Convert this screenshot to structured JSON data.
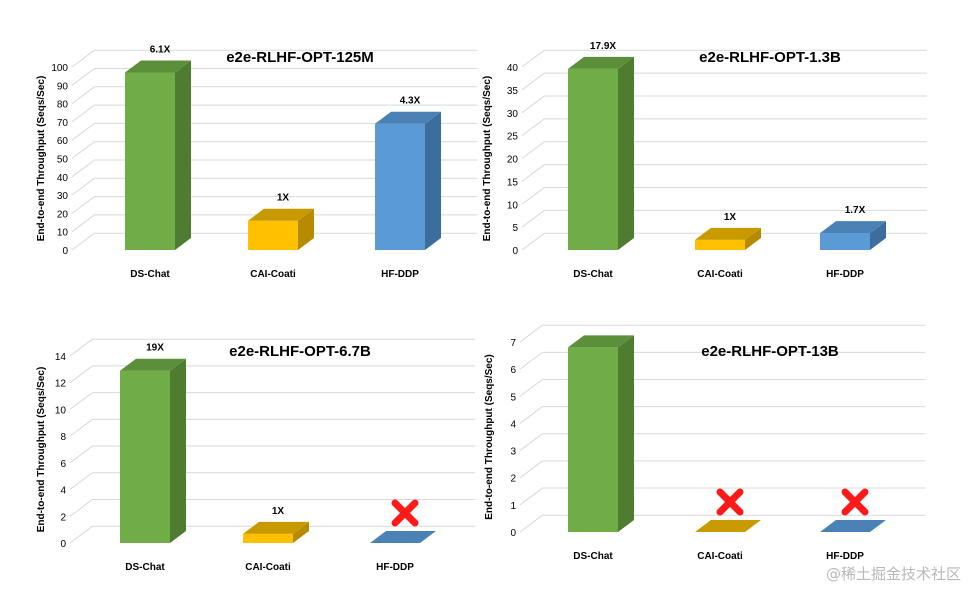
{
  "colors": {
    "green": "#70ad47",
    "green_side": "#4e7c30",
    "green_top": "#5b8f3a",
    "yellow": "#ffc000",
    "yellow_side": "#b78a00",
    "yellow_top": "#c99a00",
    "blue": "#5b9bd5",
    "blue_side": "#3b6e9e",
    "blue_top": "#4a82b5",
    "cross": "#ff1a1a",
    "grid": "#d9d9d9"
  },
  "chart_data": [
    {
      "type": "bar",
      "title": "e2e-RLHF-OPT-125M",
      "ylabel": "End-to-end Throughput (Seqs/Sec)",
      "ylim": [
        0,
        100
      ],
      "yticks": [
        0,
        10,
        20,
        30,
        40,
        50,
        60,
        70,
        80,
        90,
        100
      ],
      "categories": [
        "DS-Chat",
        "CAI-Coati",
        "HF-DDP"
      ],
      "values": [
        97,
        16,
        69
      ],
      "labels": [
        "6.1X",
        "1X",
        "4.3X"
      ],
      "failed": [
        false,
        false,
        false
      ]
    },
    {
      "type": "bar",
      "title": "e2e-RLHF-OPT-1.3B",
      "ylabel": "End-to-end Throughput (Seqs/Sec)",
      "ylim": [
        0,
        40
      ],
      "yticks": [
        0,
        5,
        10,
        15,
        20,
        25,
        30,
        35,
        40
      ],
      "categories": [
        "DS-Chat",
        "CAI-Coati",
        "HF-DDP"
      ],
      "values": [
        39.6,
        2.2,
        3.7
      ],
      "labels": [
        "17.9X",
        "1X",
        "1.7X"
      ],
      "failed": [
        false,
        false,
        false
      ]
    },
    {
      "type": "bar",
      "title": "e2e-RLHF-OPT-6.7B",
      "ylabel": "End-to-end Throughput (Seqs/Sec)",
      "ylim": [
        0,
        14
      ],
      "yticks": [
        0,
        2,
        4,
        6,
        8,
        10,
        12,
        14
      ],
      "categories": [
        "DS-Chat",
        "CAI-Coati",
        "HF-DDP"
      ],
      "values": [
        12.9,
        0.68,
        0
      ],
      "labels": [
        "19X",
        "1X",
        ""
      ],
      "failed": [
        false,
        false,
        true
      ]
    },
    {
      "type": "bar",
      "title": "e2e-RLHF-OPT-13B",
      "ylabel": "End-to-end Throughput (Seqs/Sec)",
      "ylim": [
        0,
        7
      ],
      "yticks": [
        0,
        1,
        2,
        3,
        4,
        5,
        6,
        7
      ],
      "categories": [
        "DS-Chat",
        "CAI-Coati",
        "HF-DDP"
      ],
      "values": [
        6.8,
        0,
        0
      ],
      "labels": [
        "",
        "",
        ""
      ],
      "failed": [
        false,
        true,
        true
      ]
    }
  ],
  "watermark": "@稀土掘金技术社区"
}
